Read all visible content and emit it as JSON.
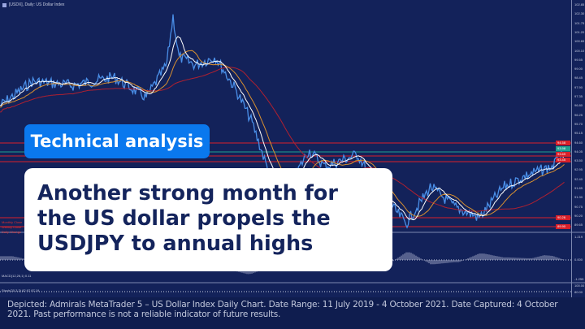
{
  "window": {
    "title": "[USDX], Daily: US Dollar Index"
  },
  "price_axis": {
    "labels": [
      "102.85",
      "102.30",
      "101.75",
      "101.20",
      "100.65",
      "100.10",
      "99.55",
      "99.00",
      "98.45",
      "97.90",
      "97.35",
      "96.80",
      "96.25",
      "95.70",
      "95.15",
      "94.60",
      "94.05",
      "93.50",
      "92.95",
      "92.40",
      "91.85",
      "91.30",
      "90.75",
      "90.20",
      "89.65"
    ],
    "highlighted": [
      {
        "label": "94.58",
        "color": "#d8202a"
      },
      {
        "label": "93.98",
        "color": "#20a090"
      },
      {
        "label": "93.69",
        "color": "#d8202a"
      },
      {
        "label": "93.45",
        "color": "#d8202a"
      },
      {
        "label": "90.26",
        "color": "#d8202a"
      },
      {
        "label": "89.90",
        "color": "#d8202a"
      }
    ]
  },
  "legend": [
    "Monthly Close",
    "Weekly Close",
    "Daily Change"
  ],
  "macd": {
    "label": "MACD(12,26,1) 0.11",
    "top": "1.219",
    "zero": "0.000",
    "bottom": "-1.255"
  },
  "stochastic": {
    "label": "Stoch(20,3,3) 82.97 87.19",
    "top": "100.00",
    "mid": "80.00"
  },
  "badge": "Technical analysis",
  "headline": [
    "Another strong month for",
    "the US dollar propels the",
    "USDJPY to annual highs"
  ],
  "caption": "Depicted: Admirals MetaTrader 5 – US Dollar Index Daily Chart. Date Range: 11 July 2019 - 4 October 2021. Date Captured: 4 October 2021. Past performance is not a reliable indicator of future results.",
  "colors": {
    "chart_bg": "#13225a",
    "badge": "#0a78ee",
    "headline": "#14245c",
    "resistance": "#d8202a"
  }
}
